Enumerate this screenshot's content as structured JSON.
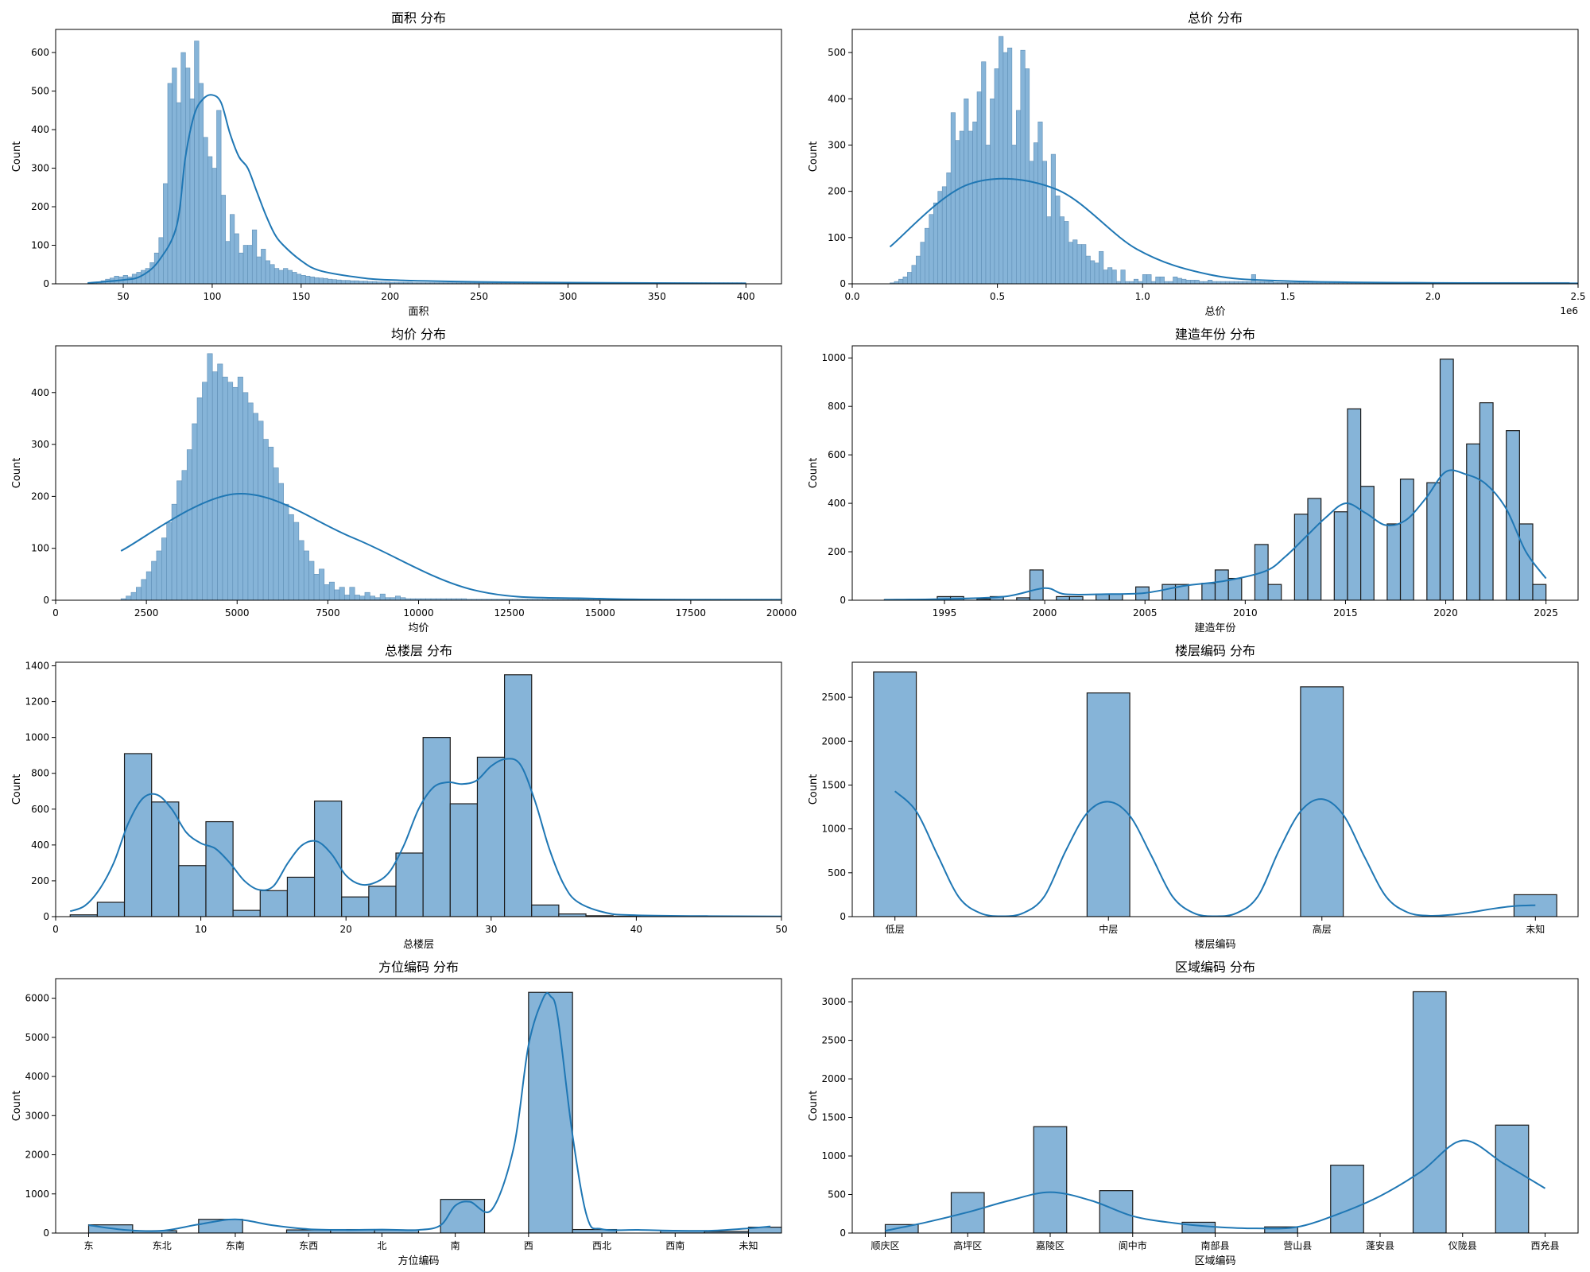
{
  "figure": {
    "colors": {
      "bar_fill": "#86b4d8",
      "bar_edge": "#5f8fb6",
      "bar_edge_dark": "#1a1a1a",
      "kde": "#1f77b4"
    }
  },
  "chart_data": [
    {
      "type": "bar",
      "subtype": "histogram",
      "title": "面积 分布",
      "xlabel": "面积",
      "ylabel": "Count",
      "xlim": [
        12,
        420
      ],
      "ylim": [
        0,
        660
      ],
      "xticks": [
        50,
        100,
        150,
        200,
        250,
        300,
        350,
        400
      ],
      "yticks": [
        0,
        100,
        200,
        300,
        400,
        500,
        600
      ],
      "bins": {
        "start": 30,
        "width": 2.5,
        "counts": [
          2,
          3,
          5,
          8,
          12,
          15,
          20,
          18,
          22,
          18,
          25,
          30,
          35,
          40,
          55,
          80,
          120,
          260,
          520,
          560,
          470,
          600,
          560,
          480,
          630,
          520,
          380,
          330,
          300,
          450,
          230,
          110,
          180,
          130,
          80,
          100,
          100,
          140,
          70,
          90,
          60,
          50,
          40,
          35,
          40,
          35,
          30,
          25,
          22,
          20,
          18,
          16,
          15,
          14,
          12,
          11,
          10,
          9,
          9,
          8,
          8,
          7,
          7,
          6,
          6,
          5,
          5,
          5,
          4,
          4,
          4,
          4,
          4,
          3,
          3,
          3,
          3,
          3,
          3,
          3,
          3,
          3,
          3,
          3,
          3,
          3,
          3,
          3,
          3,
          3,
          3,
          3,
          3,
          3,
          3,
          3,
          3,
          3,
          3,
          3,
          3,
          3,
          3,
          3,
          3,
          3,
          3,
          3,
          3,
          3,
          3,
          3,
          3,
          3,
          3,
          3,
          3,
          3,
          3,
          3,
          3,
          3,
          3,
          3,
          3,
          3,
          3,
          3,
          3,
          3,
          3,
          3,
          3,
          3,
          3,
          3,
          3,
          3,
          3,
          3,
          3,
          3,
          3,
          3,
          3,
          3,
          3,
          3
        ]
      },
      "kde": {
        "x": [
          30,
          50,
          60,
          70,
          80,
          85,
          90,
          95,
          100,
          105,
          110,
          115,
          120,
          125,
          130,
          135,
          140,
          150,
          160,
          180,
          200,
          250,
          300,
          400
        ],
        "y": [
          2,
          10,
          20,
          60,
          150,
          330,
          440,
          480,
          490,
          470,
          390,
          330,
          300,
          240,
          180,
          130,
          100,
          60,
          35,
          18,
          10,
          5,
          3,
          1
        ]
      },
      "bar_edge": "light"
    },
    {
      "type": "bar",
      "subtype": "histogram",
      "title": "总价 分布",
      "xlabel": "总价",
      "ylabel": "Count",
      "xlim": [
        0,
        2500000
      ],
      "ylim": [
        0,
        550
      ],
      "x_offset_label": "1e6",
      "xticks": [
        0,
        500000,
        1000000,
        1500000,
        2000000,
        2500000
      ],
      "xticklabels": [
        "0.0",
        "0.5",
        "1.0",
        "1.5",
        "2.0",
        "2.5"
      ],
      "yticks": [
        0,
        100,
        200,
        300,
        400,
        500
      ],
      "bins": {
        "start": 130000,
        "width": 15000,
        "counts": [
          2,
          5,
          10,
          15,
          25,
          40,
          60,
          90,
          120,
          150,
          175,
          200,
          210,
          240,
          370,
          310,
          330,
          400,
          330,
          350,
          415,
          480,
          300,
          400,
          465,
          535,
          500,
          510,
          300,
          375,
          505,
          465,
          265,
          305,
          350,
          265,
          145,
          280,
          190,
          145,
          135,
          90,
          95,
          85,
          85,
          60,
          50,
          45,
          70,
          30,
          35,
          30,
          5,
          30,
          5,
          5,
          10,
          5,
          20,
          20,
          5,
          15,
          15,
          5,
          5,
          15,
          12,
          10,
          8,
          8,
          8,
          5,
          5,
          8,
          5,
          5,
          5,
          5,
          5,
          5,
          5,
          5,
          5,
          20,
          5,
          5,
          5,
          5,
          3,
          3,
          3,
          3,
          3,
          3,
          3,
          3,
          3,
          3,
          3,
          3,
          3,
          3,
          3,
          3,
          3,
          3,
          3,
          3,
          3,
          3,
          3,
          3,
          3,
          3,
          3,
          3,
          3,
          3,
          3,
          3,
          3,
          3,
          3,
          3,
          3,
          3,
          3,
          3,
          3,
          3,
          3,
          3,
          3,
          3,
          3,
          3,
          3,
          3,
          3,
          3,
          3,
          3,
          3,
          3,
          3,
          3,
          3,
          3,
          3,
          3,
          3,
          3,
          3,
          3,
          3,
          3
        ]
      },
      "kde": {
        "x": [
          130000,
          400000,
          700000,
          980000,
          1230000,
          1500000,
          2000000,
          2500000
        ],
        "y": [
          80,
          215,
          205,
          75,
          20,
          6,
          2,
          1
        ]
      },
      "bar_edge": "light"
    },
    {
      "type": "bar",
      "subtype": "histogram",
      "title": "均价 分布",
      "xlabel": "均价",
      "ylabel": "Count",
      "xlim": [
        0,
        20000
      ],
      "ylim": [
        0,
        490
      ],
      "xticks": [
        0,
        2500,
        5000,
        7500,
        10000,
        12500,
        15000,
        17500,
        20000
      ],
      "yticks": [
        0,
        100,
        200,
        300,
        400
      ],
      "bins": {
        "start": 1800,
        "width": 140,
        "counts": [
          3,
          8,
          15,
          25,
          40,
          55,
          75,
          95,
          120,
          150,
          185,
          230,
          250,
          290,
          340,
          390,
          420,
          475,
          440,
          455,
          430,
          420,
          410,
          430,
          400,
          380,
          360,
          345,
          310,
          295,
          255,
          225,
          185,
          165,
          150,
          115,
          95,
          75,
          50,
          60,
          30,
          35,
          20,
          25,
          10,
          25,
          10,
          8,
          15,
          8,
          5,
          12,
          5,
          5,
          8,
          5,
          3,
          3,
          3,
          3,
          3,
          3,
          3,
          3,
          3,
          3,
          3,
          3,
          2,
          2,
          2,
          2,
          2,
          2,
          2,
          2,
          2,
          2,
          2,
          2,
          2,
          2,
          2,
          2,
          2,
          2,
          2,
          2,
          2,
          2,
          2,
          2,
          2,
          2,
          2,
          2,
          2,
          2,
          2,
          2,
          2,
          2,
          2,
          2,
          2,
          2,
          2,
          2,
          2,
          2,
          2,
          2,
          2,
          2,
          2,
          2,
          2,
          2,
          2,
          2,
          2,
          2,
          2,
          2,
          2,
          2,
          2,
          2,
          2,
          2
        ]
      },
      "kde": {
        "x": [
          1800,
          5000,
          8200,
          11500,
          15000,
          20000
        ],
        "y": [
          95,
          205,
          120,
          20,
          3,
          1
        ]
      },
      "bar_edge": "light"
    },
    {
      "type": "bar",
      "subtype": "histogram",
      "title": "建造年份 分布",
      "xlabel": "建造年份",
      "ylabel": "Count",
      "xlim": [
        1990.4,
        2026.6
      ],
      "ylim": [
        0,
        1050
      ],
      "xticks": [
        1995,
        2000,
        2005,
        2010,
        2015,
        2020,
        2025
      ],
      "yticks": [
        0,
        200,
        400,
        600,
        800,
        1000
      ],
      "bins": {
        "start": 1992,
        "width": 0.66,
        "counts": [
          2,
          0,
          0,
          0,
          15,
          15,
          0,
          5,
          15,
          0,
          10,
          125,
          0,
          15,
          15,
          0,
          25,
          25,
          0,
          55,
          0,
          65,
          65,
          0,
          70,
          125,
          90,
          0,
          230,
          65,
          0,
          355,
          420,
          0,
          365,
          790,
          470,
          0,
          315,
          500,
          0,
          485,
          995,
          0,
          645,
          815,
          0,
          700,
          315,
          65
        ]
      },
      "kde": {
        "x": [
          1992,
          1995,
          1998,
          2000,
          2001,
          2003,
          2005,
          2007,
          2009,
          2011,
          2012,
          2013,
          2014,
          2015,
          2016,
          2017,
          2018,
          2019,
          2020,
          2021,
          2022,
          2023,
          2024,
          2025
        ],
        "y": [
          2,
          5,
          15,
          50,
          25,
          25,
          30,
          60,
          80,
          120,
          180,
          260,
          340,
          400,
          360,
          310,
          330,
          420,
          530,
          520,
          480,
          380,
          200,
          90
        ]
      },
      "bar_edge": "dark"
    },
    {
      "type": "bar",
      "subtype": "histogram",
      "title": "总楼层 分布",
      "xlabel": "总楼层",
      "ylabel": "Count",
      "xlim": [
        0,
        50
      ],
      "ylim": [
        0,
        1420
      ],
      "xticks": [
        0,
        10,
        20,
        30,
        40,
        50
      ],
      "yticks": [
        0,
        200,
        400,
        600,
        800,
        1000,
        1200,
        1400
      ],
      "bins": {
        "start": 1,
        "width": 1.87,
        "counts": [
          10,
          80,
          910,
          640,
          285,
          530,
          35,
          145,
          220,
          645,
          110,
          170,
          355,
          1000,
          630,
          890,
          1350,
          65,
          15,
          5,
          2,
          1,
          1,
          1,
          1,
          1
        ]
      },
      "kde": {
        "x": [
          1,
          2,
          3,
          4,
          5,
          6,
          7,
          8,
          9,
          10,
          11,
          12,
          13,
          14,
          15,
          16,
          17,
          18,
          19,
          20,
          21,
          22,
          23,
          24,
          25,
          26,
          27,
          28,
          29,
          30,
          31,
          32,
          33,
          34,
          35,
          36,
          38,
          40,
          45,
          50
        ],
        "y": [
          30,
          60,
          150,
          300,
          520,
          660,
          680,
          600,
          470,
          410,
          380,
          300,
          200,
          150,
          170,
          300,
          400,
          420,
          350,
          230,
          180,
          190,
          250,
          400,
          600,
          720,
          750,
          740,
          760,
          840,
          880,
          850,
          650,
          380,
          180,
          80,
          20,
          8,
          3,
          1
        ]
      },
      "bar_edge": "dark"
    },
    {
      "type": "bar",
      "subtype": "histogram",
      "title": "楼层编码 分布",
      "xlabel": "楼层编码",
      "ylabel": "Count",
      "xlim": [
        -0.2,
        3.2
      ],
      "ylim": [
        0,
        2900
      ],
      "categories": [
        "低层",
        "中层",
        "高层",
        "未知"
      ],
      "yticks": [
        0,
        500,
        1000,
        1500,
        2000,
        2500
      ],
      "bars": [
        {
          "x": 0,
          "w": 0.2,
          "value": 2790
        },
        {
          "x": 1,
          "w": 0.2,
          "value": 2550
        },
        {
          "x": 2,
          "w": 0.2,
          "value": 2620
        },
        {
          "x": 3,
          "w": 0.2,
          "value": 250
        }
      ],
      "kde": {
        "x": [
          0,
          0.1,
          0.2,
          0.3,
          0.4,
          0.5,
          0.6,
          0.7,
          0.8,
          0.9,
          1,
          1.1,
          1.2,
          1.3,
          1.4,
          1.5,
          1.6,
          1.7,
          1.8,
          1.9,
          2,
          2.1,
          2.2,
          2.3,
          2.4,
          2.5,
          2.6,
          2.7,
          2.8,
          2.9,
          3
        ],
        "y": [
          1430,
          1200,
          700,
          220,
          40,
          5,
          40,
          230,
          750,
          1180,
          1310,
          1150,
          700,
          230,
          40,
          5,
          40,
          230,
          760,
          1200,
          1340,
          1160,
          680,
          230,
          50,
          10,
          20,
          50,
          90,
          120,
          130
        ]
      },
      "bar_edge": "dark"
    },
    {
      "type": "bar",
      "subtype": "histogram",
      "title": "方位编码 分布",
      "xlabel": "方位编码",
      "ylabel": "Count",
      "xlim": [
        -0.45,
        9.45
      ],
      "ylim": [
        0,
        6500
      ],
      "categories": [
        "东",
        "东北",
        "东南",
        "东西",
        "北",
        "南",
        "西",
        "西北",
        "西南",
        "未知"
      ],
      "yticks": [
        0,
        1000,
        2000,
        3000,
        4000,
        5000,
        6000
      ],
      "bars": [
        {
          "x": 0.3,
          "w": 0.6,
          "value": 210
        },
        {
          "x": 0.9,
          "w": 0.6,
          "value": 60
        },
        {
          "x": 1.8,
          "w": 0.6,
          "value": 350
        },
        {
          "x": 3.0,
          "w": 0.6,
          "value": 80
        },
        {
          "x": 3.6,
          "w": 0.6,
          "value": 90
        },
        {
          "x": 4.2,
          "w": 0.6,
          "value": 80
        },
        {
          "x": 5.1,
          "w": 0.6,
          "value": 860
        },
        {
          "x": 6.3,
          "w": 0.6,
          "value": 6150
        },
        {
          "x": 6.9,
          "w": 0.6,
          "value": 90
        },
        {
          "x": 8.1,
          "w": 0.6,
          "value": 60
        },
        {
          "x": 8.7,
          "w": 0.6,
          "value": 40
        },
        {
          "x": 9.3,
          "w": 0.6,
          "value": 150
        }
      ],
      "kde": {
        "x": [
          0,
          0.5,
          1,
          1.5,
          2,
          2.5,
          3,
          3.5,
          4,
          4.5,
          4.8,
          5,
          5.2,
          5.5,
          5.8,
          6,
          6.2,
          6.3,
          6.4,
          6.6,
          6.8,
          7,
          7.5,
          8,
          8.5,
          9,
          9.3
        ],
        "y": [
          200,
          80,
          60,
          220,
          350,
          200,
          100,
          80,
          90,
          80,
          200,
          700,
          800,
          600,
          2200,
          4800,
          6000,
          6050,
          5500,
          2500,
          400,
          100,
          80,
          60,
          60,
          120,
          170
        ]
      },
      "bar_edge": "dark"
    },
    {
      "type": "bar",
      "subtype": "histogram",
      "title": "区域编码 分布",
      "xlabel": "区域编码",
      "ylabel": "Count",
      "xlim": [
        -0.4,
        8.4
      ],
      "ylim": [
        0,
        3300
      ],
      "categories": [
        "顺庆区",
        "高坪区",
        "嘉陵区",
        "阆中市",
        "南部县",
        "营山县",
        "蓬安县",
        "仪陇县",
        "西充县"
      ],
      "yticks": [
        0,
        500,
        1000,
        1500,
        2000,
        2500,
        3000
      ],
      "bars": [
        {
          "x": 0.2,
          "w": 0.4,
          "value": 110
        },
        {
          "x": 1.0,
          "w": 0.4,
          "value": 525
        },
        {
          "x": 2.0,
          "w": 0.4,
          "value": 1380
        },
        {
          "x": 2.8,
          "w": 0.4,
          "value": 550
        },
        {
          "x": 3.8,
          "w": 0.4,
          "value": 140
        },
        {
          "x": 4.8,
          "w": 0.4,
          "value": 80
        },
        {
          "x": 5.6,
          "w": 0.4,
          "value": 880
        },
        {
          "x": 6.6,
          "w": 0.4,
          "value": 3130
        },
        {
          "x": 7.6,
          "w": 0.4,
          "value": 1400
        }
      ],
      "kde": {
        "x": [
          0,
          0.5,
          1,
          1.5,
          2,
          2.5,
          3,
          3.5,
          4,
          4.5,
          5,
          5.5,
          6,
          6.5,
          7,
          7.5,
          8
        ],
        "y": [
          30,
          140,
          270,
          420,
          530,
          420,
          220,
          130,
          80,
          60,
          80,
          250,
          480,
          800,
          1200,
          900,
          580
        ]
      },
      "bar_edge": "dark"
    }
  ]
}
